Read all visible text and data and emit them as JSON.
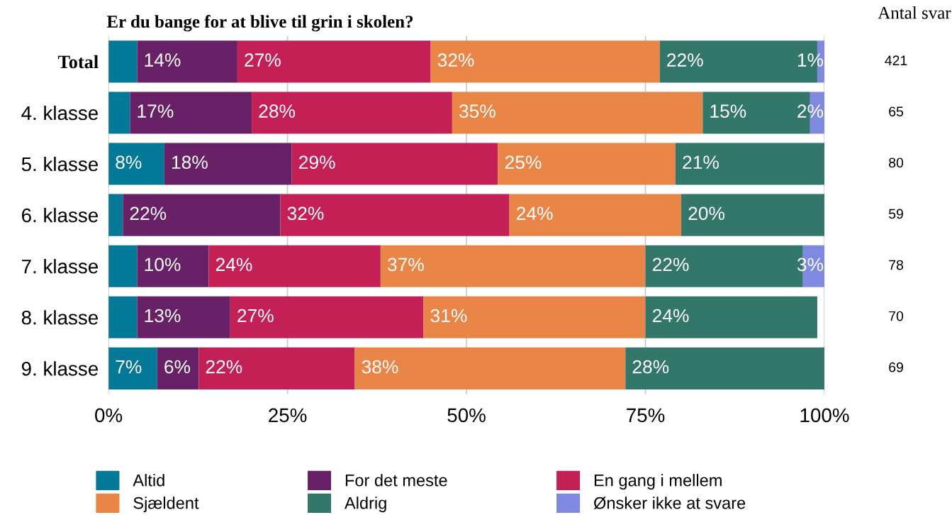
{
  "chart_data": {
    "type": "bar",
    "orientation": "horizontal",
    "stacked": true,
    "title": "Er du bange for at blive til grin i skolen?",
    "categories": [
      "Total",
      "4. klasse",
      "5. klasse",
      "6. klasse",
      "7. klasse",
      "8. klasse",
      "9. klasse"
    ],
    "series": [
      {
        "name": "Altid",
        "color": "#037897",
        "values": [
          4,
          3,
          7.8,
          2,
          4,
          4,
          6.8
        ],
        "value_labels": [
          null,
          null,
          "8%",
          null,
          null,
          null,
          "7%"
        ]
      },
      {
        "name": "For det meste",
        "color": "#682167",
        "values": [
          14,
          17,
          17.8,
          22,
          10,
          13,
          5.8
        ],
        "value_labels": [
          "14%",
          "17%",
          "18%",
          "22%",
          "10%",
          "13%",
          "6%"
        ]
      },
      {
        "name": "En gang i mellem",
        "color": "#c32156",
        "values": [
          27,
          28,
          28.8,
          32,
          24,
          27,
          21.8
        ],
        "value_labels": [
          "27%",
          "28%",
          "29%",
          "32%",
          "24%",
          "27%",
          "22%"
        ]
      },
      {
        "name": "Sjældent",
        "color": "#ea8548",
        "values": [
          32,
          35,
          24.8,
          24,
          37,
          31,
          37.8
        ],
        "value_labels": [
          "32%",
          "35%",
          "25%",
          "24%",
          "37%",
          "31%",
          "38%"
        ]
      },
      {
        "name": "Aldrig",
        "color": "#33766a",
        "values": [
          22,
          15,
          20.8,
          20,
          22,
          24,
          27.8
        ],
        "value_labels": [
          "22%",
          "15%",
          "21%",
          "20%",
          "22%",
          "24%",
          "28%"
        ]
      },
      {
        "name": "Ønsker ikke at svare",
        "color": "#7f89e0",
        "values": [
          1,
          2,
          0,
          0,
          3,
          0,
          0
        ],
        "value_labels": [
          "1%",
          "2%",
          null,
          null,
          "3%",
          null,
          null
        ]
      }
    ],
    "xlim": [
      0,
      100
    ],
    "xticks": [
      {
        "value": 0,
        "label": "0%"
      },
      {
        "value": 25,
        "label": "25%"
      },
      {
        "value": 50,
        "label": "50%"
      },
      {
        "value": 75,
        "label": "75%"
      },
      {
        "value": 100,
        "label": "100%"
      }
    ],
    "grid": "x",
    "legend": "bottom",
    "annotations": [
      "Antal svar",
      "421",
      "65",
      "80",
      "59",
      "78",
      "70",
      "69"
    ]
  }
}
